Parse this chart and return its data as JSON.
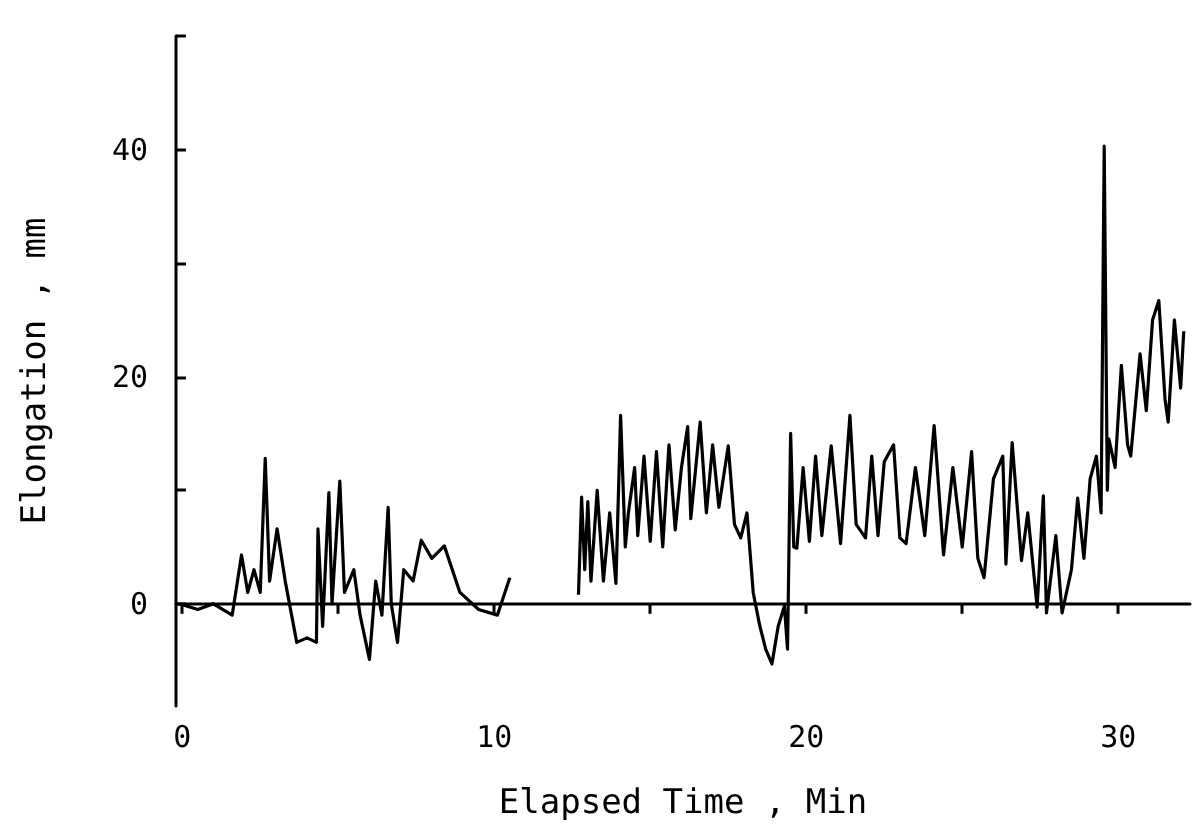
{
  "chart_data": {
    "type": "line",
    "xlabel": "Elapsed Time , Min",
    "ylabel": "Elongation , mm",
    "xlim": [
      -0.2,
      32.3
    ],
    "ylim": [
      -9,
      50
    ],
    "xticks": [
      0,
      {
        "value": 5,
        "label": null
      },
      10,
      {
        "value": 15,
        "label": null
      },
      20,
      {
        "value": 25,
        "label": null
      },
      30
    ],
    "yticks": [
      0,
      {
        "value": 10,
        "label": null
      },
      20,
      {
        "value": 30,
        "label": null
      },
      40,
      {
        "value": 50,
        "label": null
      }
    ],
    "x": [
      -0.1,
      0.5,
      1.0,
      1.6,
      1.9,
      2.1,
      2.3,
      2.5,
      2.66,
      2.8,
      3.04,
      3.3,
      3.67,
      4.0,
      4.3,
      4.35,
      4.5,
      4.7,
      4.8,
      5.05,
      5.2,
      5.5,
      5.7,
      6.0,
      6.2,
      6.4,
      6.6,
      6.7,
      6.9,
      7.1,
      7.4,
      7.66,
      8.0,
      8.4,
      8.9,
      9.5,
      10.1,
      10.5,
      11.5,
      12.7,
      12.8,
      12.9,
      13.0,
      13.1,
      13.3,
      13.5,
      13.7,
      13.9,
      14.05,
      14.2,
      14.3,
      14.5,
      14.6,
      14.8,
      15.0,
      15.2,
      15.4,
      15.6,
      15.8,
      16.0,
      16.2,
      16.3,
      16.6,
      16.8,
      17.0,
      17.2,
      17.5,
      17.7,
      17.9,
      18.1,
      18.3,
      18.5,
      18.7,
      18.9,
      19.1,
      19.3,
      19.4,
      19.5,
      19.6,
      19.7,
      19.9,
      20.1,
      20.3,
      20.5,
      20.8,
      21.1,
      21.4,
      21.6,
      21.9,
      22.1,
      22.3,
      22.5,
      22.8,
      23.0,
      23.2,
      23.5,
      23.8,
      24.1,
      24.4,
      24.7,
      25.0,
      25.3,
      25.5,
      25.7,
      26.0,
      26.3,
      26.4,
      26.6,
      26.9,
      27.1,
      27.4,
      27.6,
      27.7,
      28.0,
      28.2,
      28.5,
      28.7,
      28.9,
      29.1,
      29.3,
      29.45,
      29.55,
      29.65,
      29.7,
      29.9,
      30.1,
      30.3,
      30.4,
      30.7,
      30.9,
      31.1,
      31.3,
      31.5,
      31.6,
      31.8,
      32.0,
      32.1
    ],
    "series": [
      {
        "color": "#000000",
        "values": [
          0,
          -0.5,
          0,
          -1,
          4.3,
          1,
          3,
          1,
          12.8,
          2,
          6.6,
          2,
          -3.4,
          -3,
          -3.4,
          6.6,
          -2,
          9.8,
          0,
          10.8,
          1,
          3,
          -1,
          -4.9,
          2,
          -1,
          8.5,
          0,
          -3.4,
          3,
          2,
          5.6,
          4,
          5.1,
          1,
          -0.5,
          -1,
          2.3,
          null,
          0.8,
          9.4,
          3,
          9,
          2,
          10,
          2,
          8,
          1.8,
          16.6,
          5,
          8,
          12,
          6,
          13,
          5.5,
          13.4,
          5,
          14,
          6.5,
          12,
          15.6,
          7.5,
          16,
          8,
          14,
          8.5,
          13.9,
          7,
          5.8,
          8,
          1,
          -1.8,
          -4,
          -5.3,
          -2,
          -0.2,
          -4,
          15,
          5,
          4.9,
          12,
          5.5,
          13,
          6,
          13.9,
          5.3,
          16.6,
          7,
          5.8,
          13,
          6,
          12.5,
          14,
          5.8,
          5.3,
          12,
          6,
          15.7,
          4.3,
          12,
          5,
          13.4,
          4,
          2.3,
          11,
          13,
          3.5,
          14.2,
          3.8,
          8,
          -0.3,
          9.5,
          -0.8,
          6,
          -0.8,
          3,
          9.3,
          4,
          11,
          13,
          8,
          40.3,
          10,
          14.5,
          12,
          21,
          14,
          13,
          22,
          17,
          25,
          26.7,
          18,
          16,
          25,
          19,
          24
        ]
      }
    ]
  }
}
